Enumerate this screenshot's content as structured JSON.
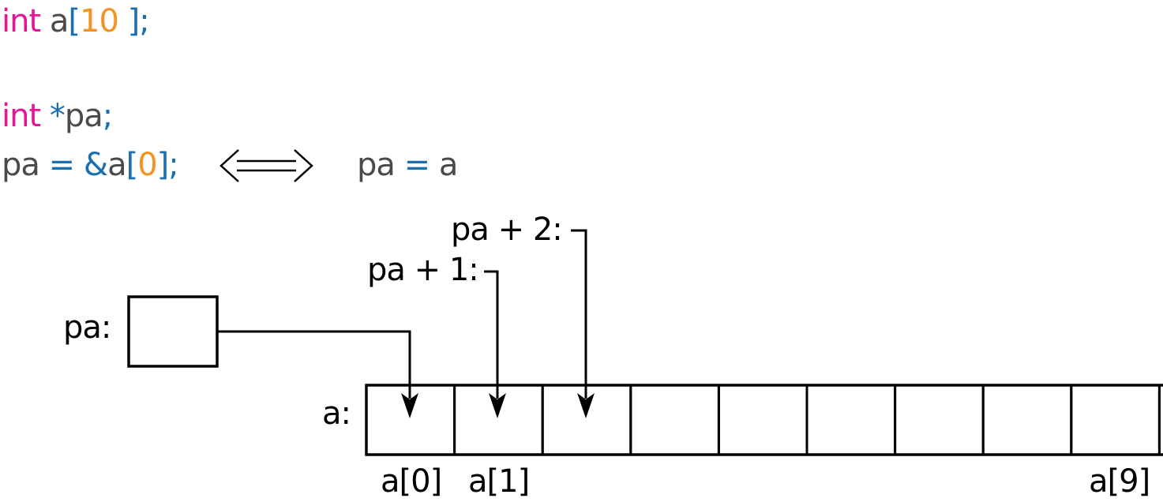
{
  "code": {
    "line1": {
      "kw": "int",
      "sp": " ",
      "name": "a",
      "ob": "[",
      "size": "10",
      "cb": " ];"
    },
    "line2": {
      "kw": "int",
      "sp": " ",
      "star": "*",
      "name": "pa",
      "semi": ";"
    },
    "line3": {
      "name": "pa",
      "eq": " = ",
      "amp": "&",
      "arr": "a",
      "ob": "[",
      "idx": "0",
      "cb": "];"
    },
    "equiv": {
      "lhs": "pa",
      "eq": " = ",
      "rhs": "a"
    }
  },
  "diagram": {
    "pa_label": "pa:",
    "array_label": "a:",
    "pa_plus_1": "pa + 1:",
    "pa_plus_2": "pa + 2:",
    "cell_count": 10,
    "index_labels": [
      "a[0]",
      "a[1]",
      "a[9]"
    ]
  }
}
